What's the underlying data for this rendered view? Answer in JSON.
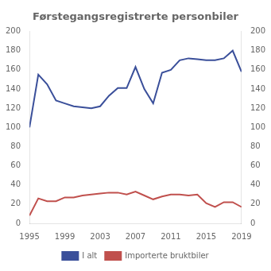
{
  "chart_data": {
    "type": "line",
    "title": "Førstegangsregistrerte personbiler",
    "x": [
      1995,
      1996,
      1997,
      1998,
      1999,
      2000,
      2001,
      2002,
      2003,
      2004,
      2005,
      2006,
      2007,
      2008,
      2009,
      2010,
      2011,
      2012,
      2013,
      2014,
      2015,
      2016,
      2017,
      2018,
      2019
    ],
    "series": [
      {
        "name": "I alt",
        "color": "#3A4F9A",
        "values": [
          100,
          155,
          145,
          128,
          125,
          122,
          121,
          120,
          122,
          133,
          141,
          141,
          163,
          140,
          125,
          157,
          160,
          170,
          172,
          171,
          170,
          170,
          172,
          180,
          158
        ]
      },
      {
        "name": "Importerte bruktbiler",
        "color": "#C0504D",
        "values": [
          8,
          26,
          23,
          23,
          27,
          27,
          29,
          30,
          31,
          32,
          32,
          30,
          33,
          29,
          25,
          28,
          30,
          30,
          29,
          30,
          21,
          17,
          22,
          22,
          17
        ]
      }
    ],
    "xlim": [
      1995,
      2019
    ],
    "xticks": [
      1995,
      1999,
      2003,
      2007,
      2011,
      2015,
      2019
    ],
    "ylim": [
      0,
      200
    ],
    "yticks": [
      0,
      20,
      40,
      60,
      80,
      100,
      120,
      140,
      160,
      180,
      200
    ],
    "y2lim": [
      0,
      200
    ],
    "y2ticks": [
      0,
      20,
      40,
      60,
      80,
      100,
      120,
      140,
      160,
      180,
      200
    ],
    "grid": false,
    "legend": "bottom"
  }
}
